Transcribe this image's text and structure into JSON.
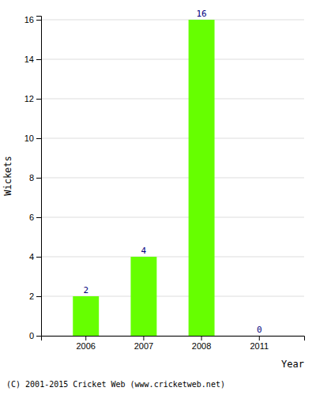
{
  "chart_data": {
    "type": "bar",
    "categories": [
      "2006",
      "2007",
      "2008",
      "2011"
    ],
    "values": [
      2,
      4,
      16,
      0
    ],
    "color": "#66ff00",
    "xlabel": "Year",
    "ylabel": "Wickets",
    "ylim": [
      0,
      16.2
    ],
    "yticks": [
      0,
      2,
      4,
      6,
      8,
      10,
      12,
      14,
      16
    ],
    "grid": true,
    "data_labels": true,
    "annotations": [
      "(C) 2001-2015 Cricket Web (www.cricketweb.net)"
    ]
  }
}
